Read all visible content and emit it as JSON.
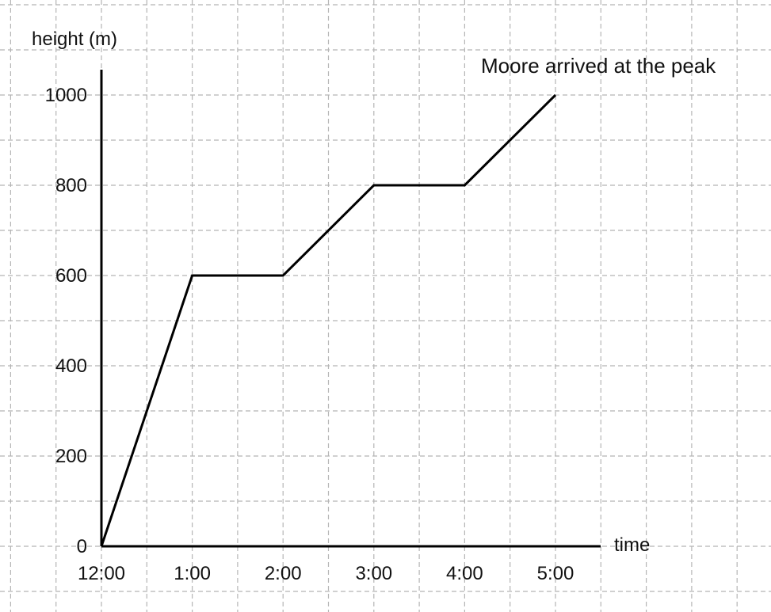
{
  "chart_data": {
    "type": "line",
    "title": "",
    "xlabel": "time",
    "ylabel": "height (m)",
    "categories": [
      "12:00",
      "1:00",
      "2:00",
      "3:00",
      "4:00",
      "5:00"
    ],
    "series": [
      {
        "values": [
          0,
          600,
          600,
          800,
          800,
          1000
        ]
      }
    ],
    "yticks": [
      0,
      200,
      400,
      600,
      800,
      1000
    ],
    "ylim": [
      0,
      1000
    ],
    "grid": true,
    "annotations": [
      {
        "text": "Moore arrived at the peak",
        "x": "5:00",
        "y": 1000
      }
    ]
  }
}
